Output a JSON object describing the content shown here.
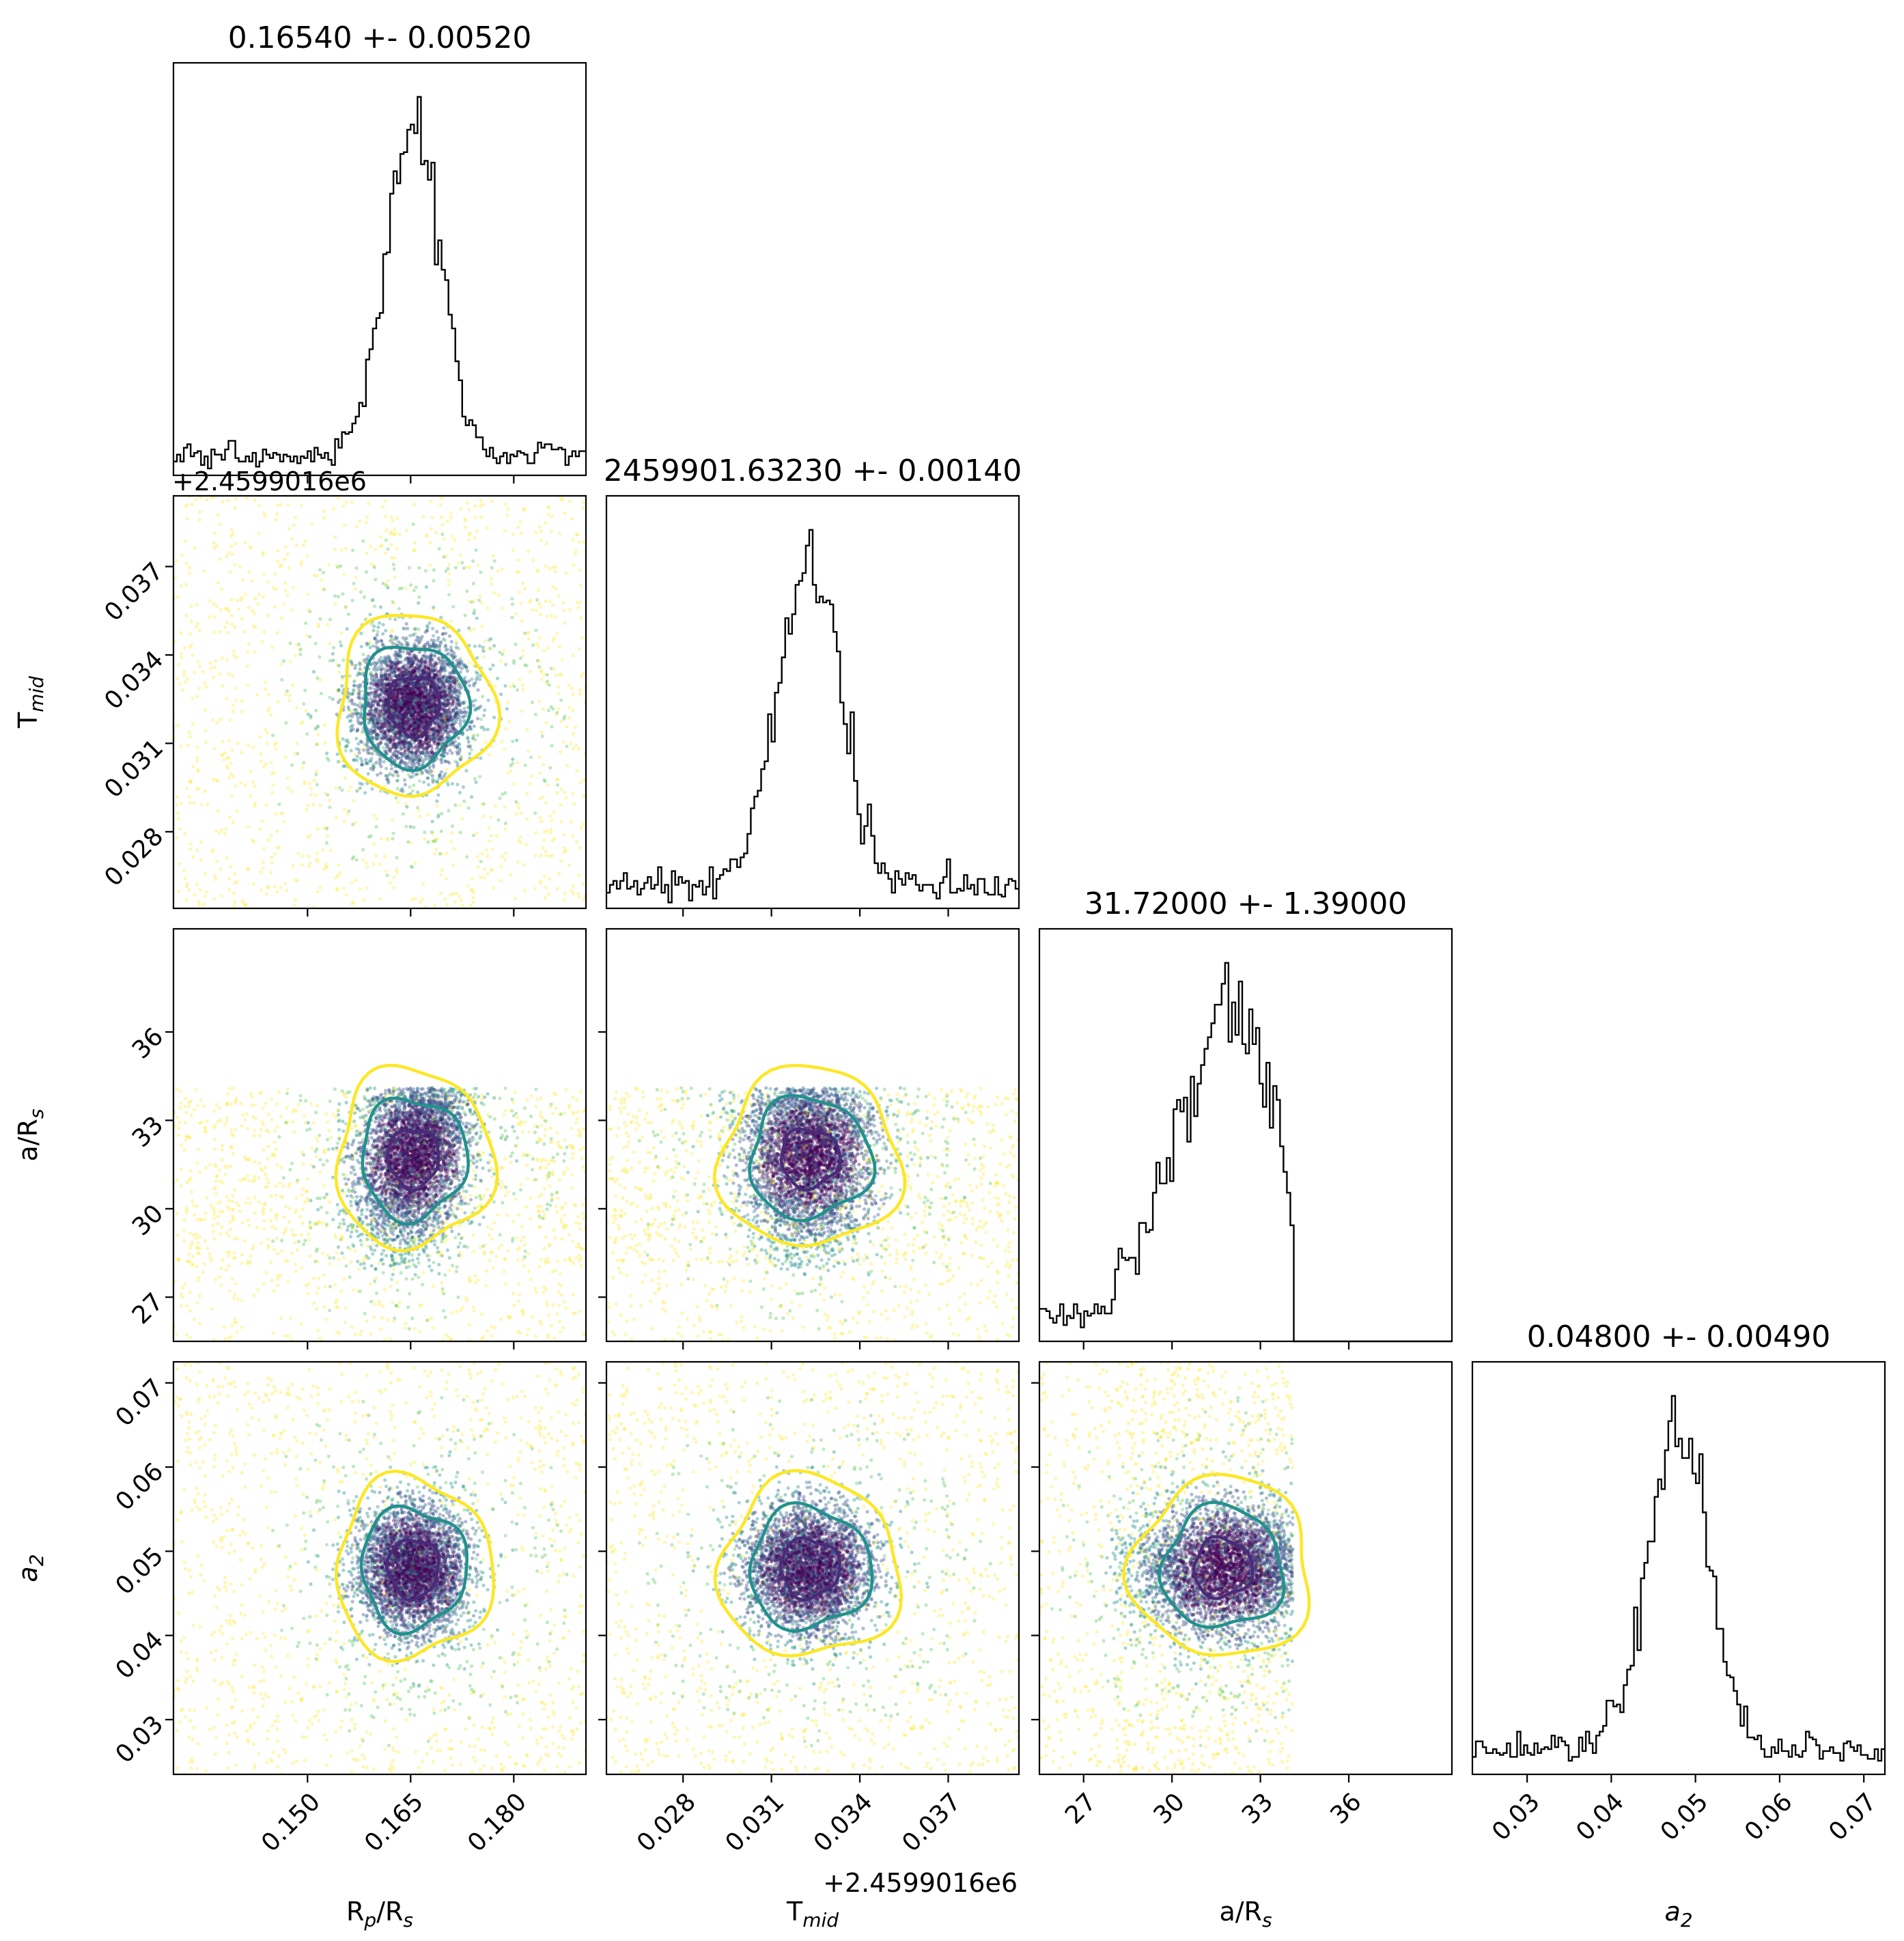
{
  "chart_data": {
    "type": "corner",
    "parameters": [
      {
        "key": "rp",
        "xlabel_main": "R",
        "xlabel_sub": "p",
        "xlabel_rest": "/R",
        "xlabel_sub2": "s",
        "ylabel_main": "",
        "range": [
          0.1305,
          0.1905
        ],
        "ticks": [
          0.15,
          0.165,
          0.18
        ],
        "tick_labels": [
          "0.150",
          "0.165",
          "0.180"
        ]
      },
      {
        "key": "tmid",
        "xlabel_main": "T",
        "xlabel_sub": "mid",
        "xlabel_rest": "",
        "xlabel_sub2": "",
        "range": [
          0.0254,
          0.0394
        ],
        "ticks": [
          0.028,
          0.031,
          0.034,
          0.037
        ],
        "tick_labels": [
          "0.028",
          "0.031",
          "0.034",
          "0.037"
        ],
        "offset_label": "+2.4599016e6"
      },
      {
        "key": "ars",
        "xlabel_main": "a/R",
        "xlabel_sub": "s",
        "xlabel_rest": "",
        "xlabel_sub2": "",
        "range": [
          25.5,
          39.5
        ],
        "ticks": [
          27,
          30,
          33,
          36
        ],
        "tick_labels": [
          "27",
          "30",
          "33",
          "36"
        ]
      },
      {
        "key": "a2",
        "xlabel_main": "a",
        "xlabel_sub": "2",
        "xlabel_rest": "",
        "xlabel_sub2": "",
        "italic": true,
        "range": [
          0.0235,
          0.0725
        ],
        "ticks": [
          0.03,
          0.04,
          0.05,
          0.06,
          0.07
        ],
        "tick_labels": [
          "0.03",
          "0.04",
          "0.05",
          "0.06",
          "0.07"
        ]
      }
    ],
    "titles": [
      "0.16540 +- 0.00520",
      "2459901.63230 +- 0.00140",
      "31.72000 +- 1.39000",
      "0.04800 +- 0.00490"
    ],
    "top_offset_label": "+2.4599016e6",
    "posterior": {
      "rp": {
        "median": 0.1654,
        "std": 0.0052
      },
      "tmid": {
        "median": 0.0323,
        "std": 0.0014
      },
      "ars": {
        "median": 31.72,
        "std": 1.39,
        "upper_cutoff": 34.1
      },
      "a2": {
        "median": 0.048,
        "std": 0.0049
      }
    },
    "contour_levels": [
      "inner",
      "middle",
      "outer"
    ],
    "colors": {
      "inner": "#472c7a",
      "middle": "#21918c",
      "outer": "#fde725",
      "histogram": "#000000",
      "points_cmap": [
        "#440154",
        "#3b528b",
        "#21918c",
        "#5ec962",
        "#fde725"
      ]
    },
    "grid": false
  }
}
